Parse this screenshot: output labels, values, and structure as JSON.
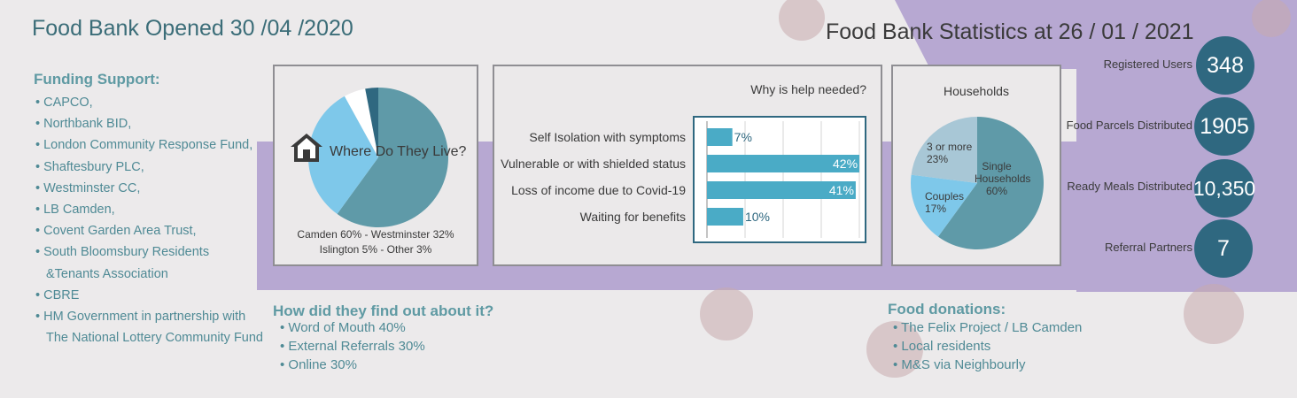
{
  "header": {
    "opened_title": "Food Bank Opened 30 /04 /2020",
    "stats_title": "Food Bank Statistics at 26 / 01 / 2021"
  },
  "funding": {
    "heading": "Funding Support:",
    "items": [
      "• CAPCO,",
      "• Northbank BID,",
      "• London Community Response Fund,",
      "• Shaftesbury PLC,",
      "• Westminster CC,",
      "• LB Camden,",
      "• Covent Garden Area Trust,",
      "• South Bloomsbury Residents",
      "&Tenants Association",
      "• CBRE",
      "• HM Government in partnership with",
      "The National Lottery Community Fund"
    ]
  },
  "find_out": {
    "heading": "How did they find out about it?",
    "items": [
      "• Word of Mouth 40%",
      "• External Referrals 30%",
      "• Online 30%"
    ]
  },
  "donations": {
    "heading": "Food donations:",
    "items": [
      "• The Felix Project / LB Camden",
      "• Local residents",
      "• M&S via Neighbourly"
    ]
  },
  "stats": [
    {
      "label": "Registered Users",
      "value": "348"
    },
    {
      "label": "Food Parcels Distributed",
      "value": "1905"
    },
    {
      "label": "Ready Meals Distributed",
      "value": "10,350"
    },
    {
      "label": "Referral Partners",
      "value": "7"
    }
  ],
  "colors": {
    "teal_dark": "#2f6880",
    "teal_mid": "#5f9aa8",
    "light_blue": "#7ec8ea",
    "pale_blue": "#a8c7d6",
    "bar": "#4aabc6",
    "lavender": "#b7a8d2"
  },
  "chart_data": [
    {
      "type": "pie",
      "title": "Where Do They Live?",
      "categories": [
        "Camden",
        "Westminster",
        "Islington",
        "Other"
      ],
      "values": [
        60,
        32,
        5,
        3
      ],
      "colors": [
        "#5f9aa8",
        "#7ec8ea",
        "#ffffff",
        "#2f6880"
      ],
      "caption_line1": "Camden 60% - Westminster 32%",
      "caption_line2": "Islington 5% - Other 3%"
    },
    {
      "type": "bar",
      "title": "Why is help needed?",
      "categories": [
        "Self Isolation with symptoms",
        "Vulnerable or with shielded status",
        "Loss of income due to Covid-19",
        "Waiting for benefits"
      ],
      "values": [
        7,
        42,
        41,
        10
      ],
      "value_labels": [
        "7%",
        "42%",
        "41%",
        "10%"
      ],
      "xlim": [
        0,
        42
      ]
    },
    {
      "type": "pie",
      "title": "Households",
      "categories": [
        "Single Households",
        "Couples",
        "3 or more"
      ],
      "values": [
        60,
        17,
        23
      ],
      "colors": [
        "#5f9aa8",
        "#7ec8ea",
        "#a8c7d6"
      ],
      "labels": [
        {
          "line1": "Single",
          "line2": "Households",
          "line3": "60%"
        },
        {
          "line1": "Couples",
          "line2": "17%"
        },
        {
          "line1": "3 or more",
          "line2": "23%"
        }
      ]
    }
  ]
}
